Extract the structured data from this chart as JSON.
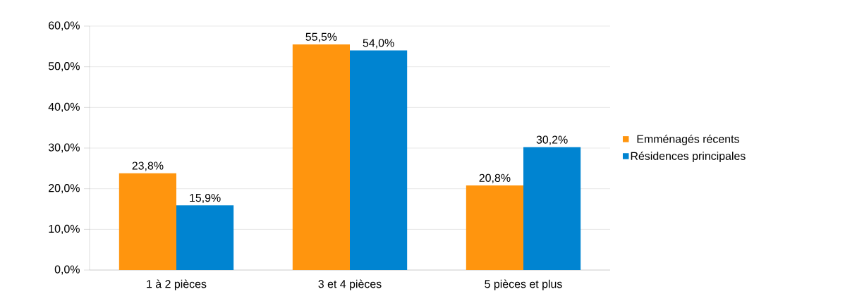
{
  "chart_data": {
    "type": "bar",
    "categories": [
      "1 à 2 pièces",
      "3 et 4 pièces",
      "5 pièces et plus"
    ],
    "series": [
      {
        "name": "Emménagés récents",
        "color": "#ff950e",
        "values": [
          23.8,
          55.5,
          20.8
        ],
        "value_labels": [
          "23,8%",
          "55,5%",
          "20,8%"
        ]
      },
      {
        "name": "Résidences principales",
        "color": "#0084d1",
        "values": [
          15.9,
          54.0,
          30.2
        ],
        "value_labels": [
          "15,9%",
          "54,0%",
          "30,2%"
        ]
      }
    ],
    "ylim": [
      0,
      60
    ],
    "yticks": [
      {
        "value": 0,
        "label": "0,0%"
      },
      {
        "value": 10,
        "label": "10,0%"
      },
      {
        "value": 20,
        "label": "20,0%"
      },
      {
        "value": 30,
        "label": "30,0%"
      },
      {
        "value": 40,
        "label": "40,0%"
      },
      {
        "value": 50,
        "label": "50,0%"
      },
      {
        "value": 60,
        "label": "60,0%"
      }
    ],
    "grid": "y",
    "legend": "right"
  }
}
